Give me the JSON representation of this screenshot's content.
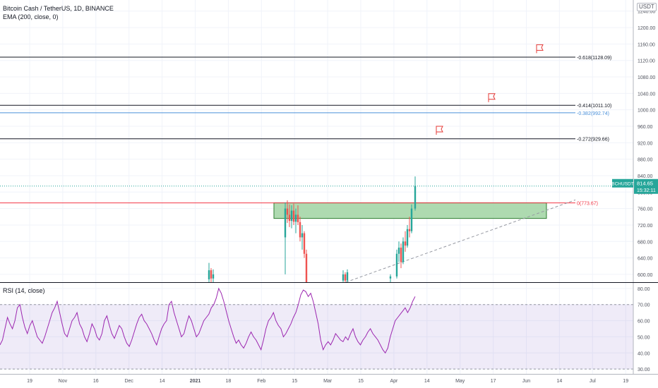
{
  "legend": {
    "symbol": "Bitcoin Cash / TetherUS, 1D, BINANCE",
    "ema": "EMA (200, close, 0)",
    "rsi": "RSI (14, close)"
  },
  "price_axis": {
    "currency": "USDT",
    "ticks": [
      "1240.00",
      "1200.00",
      "1160.00",
      "1120.00",
      "1080.00",
      "1040.00",
      "1000.00",
      "960.00",
      "920.00",
      "880.00",
      "840.00",
      "800.00",
      "760.00",
      "720.00",
      "680.00",
      "640.00",
      "600.00"
    ]
  },
  "rsi_axis": {
    "ticks": [
      "80.00",
      "70.00",
      "60.00",
      "50.00",
      "40.00",
      "30.00"
    ]
  },
  "time_axis": {
    "ticks": [
      "19",
      "Nov",
      "16",
      "Dec",
      "14",
      "2021",
      "18",
      "Feb",
      "15",
      "Mar",
      "15",
      "Apr",
      "14",
      "May",
      "17",
      "Jun",
      "14",
      "Jul",
      "19"
    ]
  },
  "levels": [
    {
      "label": "-0.618(1128.09)",
      "value": 1128.09,
      "color": "#131722"
    },
    {
      "label": "-0.414(1011.10)",
      "value": 1011.1,
      "color": "#131722"
    },
    {
      "label": "-0.382(992.74)",
      "value": 992.74,
      "color": "#4a90d9"
    },
    {
      "label": "-0.272(929.66)",
      "value": 929.66,
      "color": "#131722"
    },
    {
      "label": "0(773.67)",
      "value": 773.67,
      "color": "#f23645"
    }
  ],
  "price_badge": {
    "symbol": "BCHUSDT",
    "price": "814.65",
    "countdown": "15:32:11",
    "color": "#26a69a"
  },
  "chart_data": {
    "type": "candlestick",
    "price_range": [
      581,
      1267
    ],
    "rsi_range": [
      27,
      83
    ],
    "rsi_levels": [
      70,
      30
    ],
    "support_zone": {
      "from": 736,
      "to": 774,
      "color": "#a5d6a7"
    },
    "trendline": "dashed",
    "candles": [
      {
        "o": 588,
        "h": 628,
        "l": 570,
        "c": 610
      },
      {
        "o": 610,
        "h": 615,
        "l": 578,
        "c": 590
      },
      {
        "o": 590,
        "h": 612,
        "l": 575,
        "c": 600
      },
      {
        "o": 690,
        "h": 775,
        "l": 600,
        "c": 760
      },
      {
        "o": 760,
        "h": 780,
        "l": 725,
        "c": 745
      },
      {
        "o": 745,
        "h": 770,
        "l": 715,
        "c": 730
      },
      {
        "o": 730,
        "h": 768,
        "l": 712,
        "c": 755
      },
      {
        "o": 755,
        "h": 772,
        "l": 720,
        "c": 728
      },
      {
        "o": 728,
        "h": 760,
        "l": 700,
        "c": 745
      },
      {
        "o": 745,
        "h": 768,
        "l": 720,
        "c": 727
      },
      {
        "o": 727,
        "h": 740,
        "l": 680,
        "c": 690
      },
      {
        "o": 690,
        "h": 720,
        "l": 660,
        "c": 700
      },
      {
        "o": 700,
        "h": 705,
        "l": 640,
        "c": 650
      },
      {
        "o": 650,
        "h": 660,
        "l": 570,
        "c": 580
      },
      {
        "o": 585,
        "h": 610,
        "l": 570,
        "c": 600
      },
      {
        "o": 600,
        "h": 605,
        "l": 575,
        "c": 585
      },
      {
        "o": 585,
        "h": 612,
        "l": 578,
        "c": 605
      },
      {
        "o": 590,
        "h": 600,
        "l": 572,
        "c": 595
      },
      {
        "o": 595,
        "h": 660,
        "l": 590,
        "c": 650
      },
      {
        "o": 650,
        "h": 680,
        "l": 630,
        "c": 665
      },
      {
        "o": 665,
        "h": 675,
        "l": 615,
        "c": 630
      },
      {
        "o": 630,
        "h": 690,
        "l": 625,
        "c": 680
      },
      {
        "o": 680,
        "h": 705,
        "l": 655,
        "c": 670
      },
      {
        "o": 670,
        "h": 720,
        "l": 665,
        "c": 710
      },
      {
        "o": 710,
        "h": 740,
        "l": 690,
        "c": 705
      },
      {
        "o": 705,
        "h": 770,
        "l": 700,
        "c": 760
      },
      {
        "o": 760,
        "h": 838,
        "l": 755,
        "c": 815
      }
    ],
    "rsi": [
      45,
      48,
      55,
      62,
      58,
      55,
      60,
      68,
      70,
      62,
      56,
      52,
      57,
      60,
      55,
      50,
      48,
      46,
      50,
      55,
      60,
      65,
      68,
      72,
      65,
      58,
      52,
      50,
      55,
      60,
      62,
      65,
      58,
      55,
      50,
      47,
      52,
      58,
      55,
      50,
      48,
      52,
      60,
      63,
      57,
      52,
      49,
      53,
      57,
      55,
      50,
      46,
      44,
      48,
      53,
      58,
      62,
      64,
      60,
      58,
      55,
      52,
      48,
      45,
      50,
      55,
      58,
      60,
      70,
      72,
      65,
      60,
      55,
      50,
      52,
      58,
      63,
      60,
      55,
      50,
      52,
      56,
      60,
      62,
      64,
      68,
      70,
      74,
      80,
      77,
      72,
      66,
      60,
      55,
      50,
      46,
      48,
      45,
      43,
      46,
      50,
      53,
      50,
      48,
      45,
      42,
      48,
      55,
      60,
      62,
      65,
      60,
      57,
      55,
      50,
      52,
      55,
      58,
      62,
      65,
      70,
      76,
      79,
      78,
      75,
      77,
      72,
      65,
      58,
      48,
      42,
      45,
      47,
      45,
      48,
      52,
      50,
      48,
      47,
      50,
      48,
      52,
      55,
      50,
      47,
      45,
      48,
      50,
      53,
      55,
      52,
      50,
      48,
      45,
      42,
      40,
      43,
      50,
      55,
      60,
      62,
      64,
      66,
      68,
      65,
      68,
      72,
      75
    ]
  }
}
